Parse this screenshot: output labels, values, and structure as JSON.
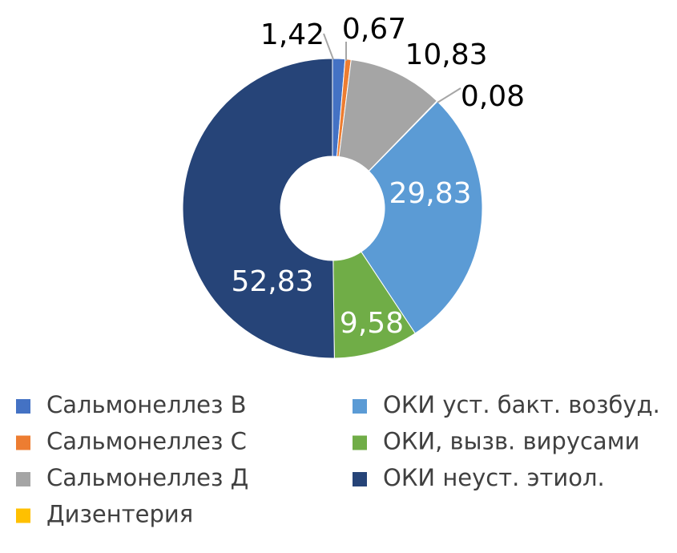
{
  "chart_data": {
    "type": "donut",
    "categories": [
      "Сальмонеллез В",
      "Сальмонеллез С",
      "Сальмонеллез Д",
      "Дизентерия",
      "ОКИ уст. бакт. возбуд.",
      "ОКИ, вызв. вирусами",
      "ОКИ неуст. этиол."
    ],
    "values": [
      1.42,
      0.67,
      10.83,
      0.08,
      29.83,
      9.58,
      52.83
    ],
    "value_labels": [
      "1,42",
      "0,67",
      "10,83",
      "0,08",
      "29,83",
      "9,58",
      "52,83"
    ],
    "colors": [
      "#4472c4",
      "#ed7d31",
      "#a5a5a5",
      "#ffc000",
      "#5b9bd5",
      "#70ad47",
      "#264478"
    ]
  }
}
